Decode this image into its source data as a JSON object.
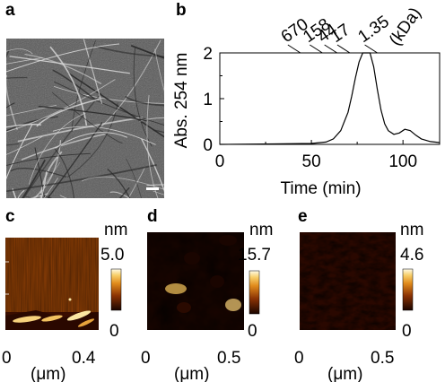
{
  "panels": {
    "a": "a",
    "b": "b",
    "c": "c",
    "d": "d",
    "e": "e"
  },
  "chart_data": {
    "type": "line",
    "ylabel": "Abs. 254 nm",
    "xlabel": "Time (min)",
    "xlim": [
      0,
      120
    ],
    "ylim": [
      0,
      2
    ],
    "xticks": [
      "0",
      "50",
      "100"
    ],
    "yticks": [
      "0",
      "1",
      "2"
    ],
    "markers": [
      {
        "label": "670",
        "x": 44
      },
      {
        "label": "158",
        "x": 56
      },
      {
        "label": "44",
        "x": 64
      },
      {
        "label": "17",
        "x": 71
      },
      {
        "label": "1.35",
        "x": 86
      }
    ],
    "marker_unit": "(kDa)",
    "series": [
      {
        "x": [
          0,
          30,
          50,
          58,
          62,
          66,
          70,
          72,
          74,
          76,
          78,
          80,
          82,
          84,
          86,
          88,
          90,
          92,
          95,
          98,
          101,
          104,
          107,
          110,
          115,
          120
        ],
        "y": [
          0,
          0.01,
          0.02,
          0.05,
          0.12,
          0.3,
          0.7,
          1.05,
          1.45,
          1.8,
          2.0,
          2.0,
          2.0,
          1.7,
          1.2,
          0.75,
          0.45,
          0.3,
          0.22,
          0.25,
          0.33,
          0.3,
          0.2,
          0.12,
          0.06,
          0.04
        ]
      }
    ],
    "line_color": "#000000"
  },
  "afm": {
    "c": {
      "unit": "nm",
      "max": "5.0",
      "min": "0",
      "x0": "0",
      "x1": "0.4",
      "xunit": "(μm)"
    },
    "d": {
      "unit": "nm",
      "max": "15.7",
      "min": "0",
      "x0": "0",
      "x1": "0.5",
      "xunit": "(μm)"
    },
    "e": {
      "unit": "nm",
      "max": "4.6",
      "min": "0",
      "x0": "0",
      "x1": "0.5",
      "xunit": "(μm)"
    }
  },
  "colors": {
    "afm_dark": "#1a0500",
    "afm_mid": "#a84a06",
    "afm_light": "#f3b43c",
    "afm_bright": "#fff6cf",
    "sem_bg": "#5a5a5a"
  }
}
